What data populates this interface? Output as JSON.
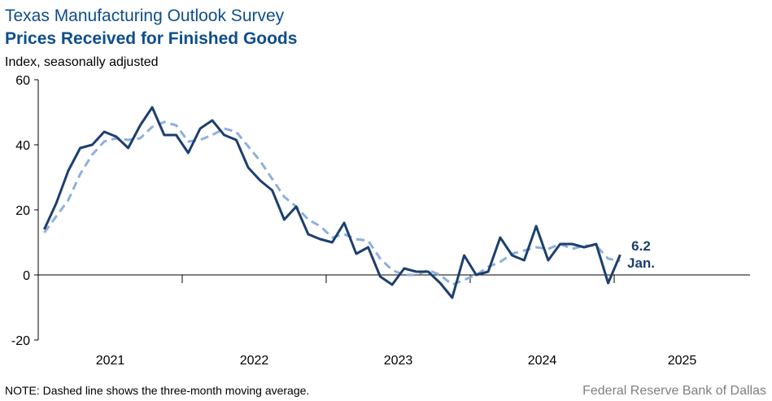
{
  "chart_data": {
    "type": "line",
    "title": "Texas Manufacturing Outlook Survey",
    "subtitle": "Prices Received for Finished Goods",
    "y_label": "Index, seasonally adjusted",
    "note": "NOTE: Dashed line shows the three-month  moving average.",
    "source": "Federal Reserve Bank of Dallas",
    "annotation": "Jan.",
    "x": [
      "2021-01",
      "2021-02",
      "2021-03",
      "2021-04",
      "2021-05",
      "2021-06",
      "2021-07",
      "2021-08",
      "2021-09",
      "2021-10",
      "2021-11",
      "2021-12",
      "2022-01",
      "2022-02",
      "2022-03",
      "2022-04",
      "2022-05",
      "2022-06",
      "2022-07",
      "2022-08",
      "2022-09",
      "2022-10",
      "2022-11",
      "2022-12",
      "2023-01",
      "2023-02",
      "2023-03",
      "2023-04",
      "2023-05",
      "2023-06",
      "2023-07",
      "2023-08",
      "2023-09",
      "2023-10",
      "2023-11",
      "2023-12",
      "2024-01",
      "2024-02",
      "2024-03",
      "2024-04",
      "2024-05",
      "2024-06",
      "2024-07",
      "2024-08",
      "2024-09",
      "2024-10",
      "2024-11",
      "2024-12",
      "2025-01"
    ],
    "xticks": [
      "2021",
      "2022",
      "2023",
      "2024",
      "2025"
    ],
    "series": [
      {
        "name": "Index",
        "color": "#1d3f6e",
        "dashed": false,
        "values": [
          14,
          22,
          32,
          39,
          40,
          44,
          42.5,
          39,
          46,
          51.5,
          43,
          43,
          37.5,
          45,
          47.5,
          43,
          41.5,
          33,
          29,
          26,
          17,
          21,
          12.5,
          11,
          10,
          16,
          6.5,
          8.5,
          -0.5,
          -3,
          2,
          1,
          1,
          -2.5,
          -7,
          6,
          0,
          1,
          11.5,
          6,
          4.5,
          15,
          4.5,
          9.5,
          9.5,
          8.5,
          9.5,
          -2.5,
          6.2
        ]
      },
      {
        "name": "Three-month moving average",
        "color": "#8eb0dd",
        "dashed": true,
        "values": [
          13,
          18,
          23,
          31,
          37,
          41,
          42,
          41.5,
          42,
          45.5,
          47,
          46,
          41,
          41.5,
          43,
          45,
          44,
          39.5,
          35,
          29.5,
          24,
          21,
          17,
          15,
          11.5,
          12.5,
          11,
          10.5,
          5,
          1.5,
          0,
          0,
          1.5,
          0,
          -3,
          -1.5,
          0,
          2.5,
          4,
          6.5,
          7.5,
          8.5,
          8,
          9.5,
          8,
          9,
          9,
          5,
          4.3
        ]
      }
    ],
    "ylim": [
      -20,
      60
    ],
    "yticks": [
      -20,
      0,
      20,
      40,
      60
    ],
    "grid": false
  }
}
